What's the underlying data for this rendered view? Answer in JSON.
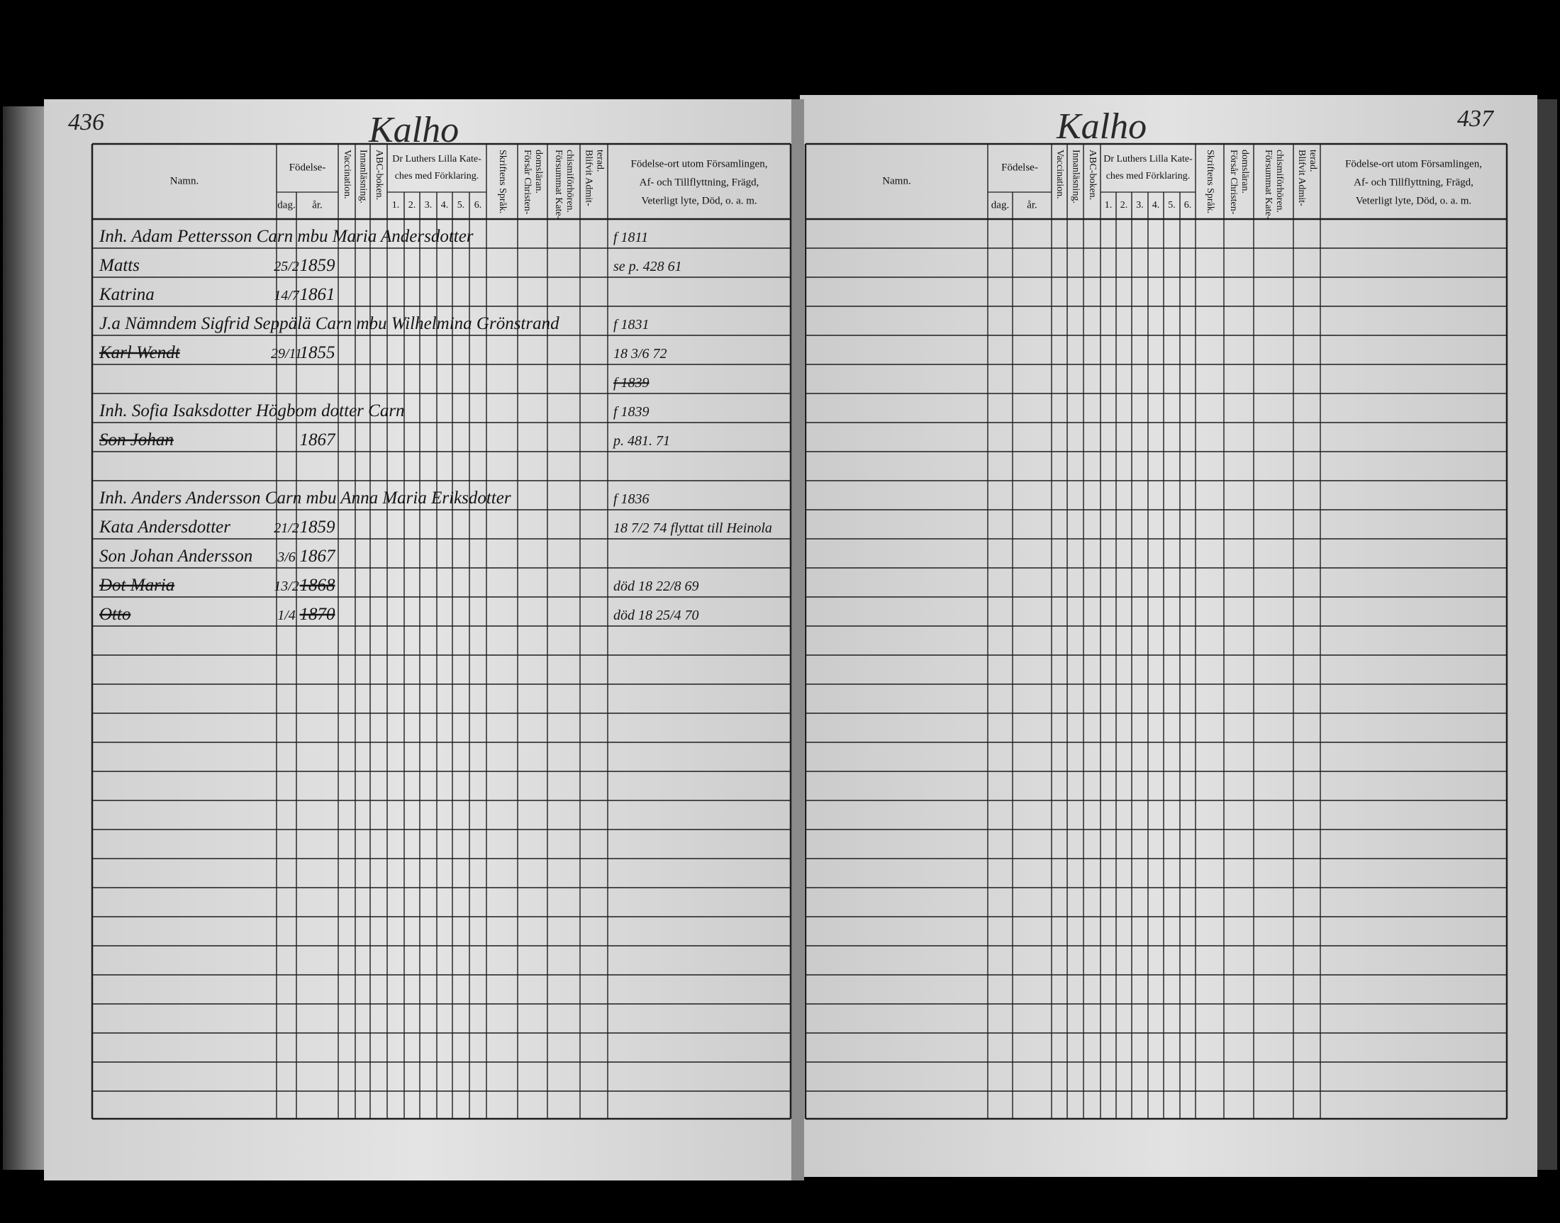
{
  "left_page": {
    "page_number": "436",
    "village": "Kalho",
    "headers": {
      "name": "Namn.",
      "birth": "Födelse-",
      "day": "dag.",
      "year": "år.",
      "vaccination": "Vaccination.",
      "reading": "Innanläsning.",
      "abc": "ABC-boken.",
      "luther": [
        "Dr Luthers Lilla Kate-",
        "ches med Förklaring."
      ],
      "luther_parts": [
        "1.",
        "2.",
        "3.",
        "4.",
        "5.",
        "6."
      ],
      "scripture": "Skriftens Språk.",
      "christ": [
        "Försår Christen-",
        "domsläran."
      ],
      "missed": [
        "Försummat Kate-",
        "chismiförhören."
      ],
      "admitted": [
        "Blifvit Admit-",
        "terad."
      ],
      "remarks": [
        "Födelse-ort utom Församlingen,",
        "Af- och Tillflyttning, Frägd,",
        "Veterligt lyte, Död, o. a. m."
      ]
    },
    "entries": [
      {
        "name": "Inh. Adam Pettersson Carn mbu Maria Andersdotter",
        "remarks": "f 1811"
      },
      {
        "name": "Matts",
        "day": "25/2",
        "year": "1859",
        "remarks": "se p. 428 61"
      },
      {
        "name": "Katrina",
        "day": "14/7",
        "year": "1861"
      },
      {
        "name": "J.a Nämndem Sigfrid Seppälä Carn mbu Wilhelmina Grönstrand",
        "remarks": "f 1831"
      },
      {
        "name": "Karl Wendt",
        "day": "29/11",
        "year": "1855",
        "remarks": "18 3/6 72"
      },
      {
        "remarks": "f 1839"
      },
      {
        "name": "Inh. Sofia Isaksdotter Högbom dotter Carn",
        "remarks": "f 1839"
      },
      {
        "name": "Son Johan",
        "year": "1867",
        "remarks": "p. 481. 71"
      },
      {
        "name": "Inh. Anders Andersson Carn mbu Anna Maria Eriksdotter",
        "remarks": "f 1836"
      },
      {
        "name": "Kata Andersdotter",
        "day": "21/2",
        "year": "1859",
        "remarks": "18 7/2 74 flyttat till Heinola"
      },
      {
        "name": "Son Johan Andersson",
        "day": "3/6",
        "year": "1867"
      },
      {
        "name": "Dot Maria",
        "day": "13/2",
        "year": "1868",
        "remarks": "död 18 22/8 69"
      },
      {
        "name": "Otto",
        "day": "1/4",
        "year": "1870",
        "remarks": "död 18 25/4 70"
      }
    ]
  },
  "right_page": {
    "page_number": "437",
    "village": "Kalho",
    "headers": {
      "name": "Namn.",
      "birth": "Födelse-",
      "day": "dag.",
      "year": "år.",
      "vaccination": "Vaccination.",
      "reading": "Innanläsning.",
      "abc": "ABC-boken.",
      "luther": [
        "Dr Luthers Lilla Kate-",
        "ches med Förklaring."
      ],
      "luther_parts": [
        "1.",
        "2.",
        "3.",
        "4.",
        "5.",
        "6."
      ],
      "scripture": "Skriftens Språk.",
      "christ": [
        "Försår Christen-",
        "domsläran."
      ],
      "missed": [
        "Försummat Kate-",
        "chismiförhören."
      ],
      "admitted": [
        "Blifvit Admit-",
        "terad."
      ],
      "remarks": [
        "Födelse-ort utom Församlingen,",
        "Af- och Tillflyttning, Frägd,",
        "Veterligt lyte, Död, o. a. m."
      ]
    }
  }
}
